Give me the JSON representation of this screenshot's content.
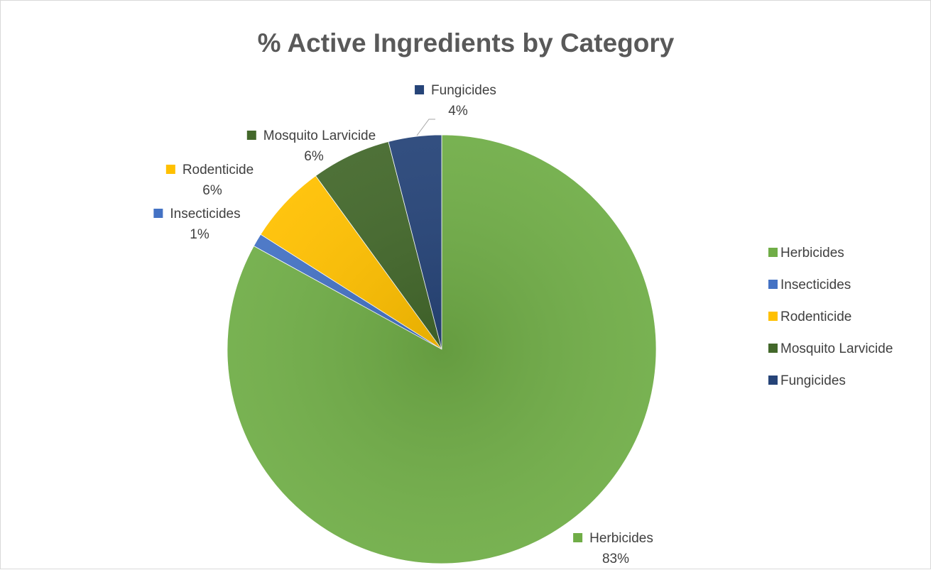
{
  "chart_data": {
    "type": "pie",
    "title": "% Active Ingredients by Category",
    "categories": [
      "Herbicides",
      "Insecticides",
      "Rodenticide",
      "Mosquito Larvicide",
      "Fungicides"
    ],
    "values": [
      83,
      1,
      6,
      6,
      4
    ],
    "value_labels": [
      "83%",
      "1%",
      "6%",
      "6%",
      "4%"
    ],
    "colors": [
      "#70ad47",
      "#4472c4",
      "#ffc000",
      "#43682b",
      "#264478"
    ],
    "legend_position": "right",
    "data_labels": "outside with category name and percentage"
  }
}
